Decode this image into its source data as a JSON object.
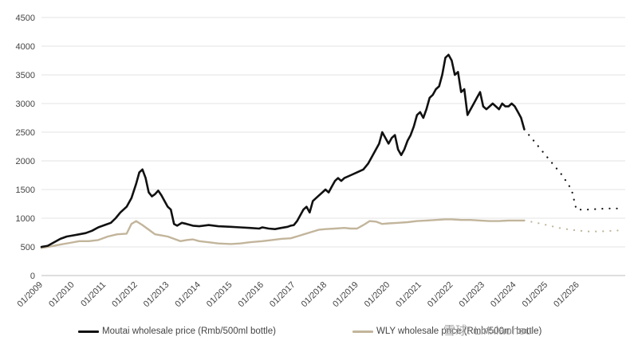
{
  "chart_data": {
    "type": "line",
    "title": "",
    "xlabel": "",
    "ylabel": "",
    "ylim": [
      0,
      4500
    ],
    "yticks": [
      0,
      500,
      1000,
      1500,
      2000,
      2500,
      3000,
      3500,
      4000,
      4500
    ],
    "xlim": [
      2009.0,
      2027.5
    ],
    "xtick_labels": [
      "01/2009",
      "01/2010",
      "01/2011",
      "01/2012",
      "01/2013",
      "01/2014",
      "01/2015",
      "01/2016",
      "01/2017",
      "01/2018",
      "01/2019",
      "01/2020",
      "01/2021",
      "01/2022",
      "01/2023",
      "01/2024",
      "01/2025",
      "01/2026"
    ],
    "xtick_values": [
      2009,
      2010,
      2011,
      2012,
      2013,
      2014,
      2015,
      2016,
      2017,
      2018,
      2019,
      2020,
      2021,
      2022,
      2023,
      2024,
      2025,
      2026
    ],
    "grid": "horizontal",
    "legend_position": "bottom",
    "series": [
      {
        "name": "Moutai wholesale price (Rmb/500ml bottle)",
        "color": "#111111",
        "style": "solid",
        "x": [
          2009.0,
          2009.2,
          2009.4,
          2009.6,
          2009.8,
          2010.0,
          2010.2,
          2010.4,
          2010.6,
          2010.8,
          2011.0,
          2011.2,
          2011.35,
          2011.5,
          2011.7,
          2011.85,
          2012.0,
          2012.1,
          2012.2,
          2012.3,
          2012.4,
          2012.5,
          2012.6,
          2012.7,
          2012.8,
          2012.9,
          2013.0,
          2013.1,
          2013.2,
          2013.3,
          2013.45,
          2013.6,
          2013.8,
          2014.0,
          2014.3,
          2014.6,
          2015.0,
          2015.3,
          2015.6,
          2015.9,
          2016.0,
          2016.2,
          2016.4,
          2016.6,
          2016.8,
          2016.9,
          2017.0,
          2017.1,
          2017.2,
          2017.3,
          2017.4,
          2017.5,
          2017.6,
          2017.7,
          2017.8,
          2017.9,
          2018.0,
          2018.1,
          2018.2,
          2018.3,
          2018.4,
          2018.5,
          2018.6,
          2018.8,
          2019.0,
          2019.2,
          2019.35,
          2019.5,
          2019.6,
          2019.7,
          2019.8,
          2019.9,
          2020.0,
          2020.1,
          2020.2,
          2020.3,
          2020.4,
          2020.5,
          2020.6,
          2020.7,
          2020.8,
          2020.9,
          2021.0,
          2021.1,
          2021.2,
          2021.3,
          2021.4,
          2021.5,
          2021.6,
          2021.7,
          2021.8,
          2021.9,
          2022.0,
          2022.1,
          2022.2,
          2022.3,
          2022.4,
          2022.5,
          2022.6,
          2022.7,
          2022.8,
          2022.9,
          2023.0,
          2023.1,
          2023.2,
          2023.3,
          2023.4,
          2023.5,
          2023.6,
          2023.7,
          2023.8,
          2023.9,
          2024.0,
          2024.1,
          2024.2,
          2024.3
        ],
        "values": [
          500,
          520,
          580,
          640,
          680,
          700,
          720,
          740,
          780,
          840,
          880,
          920,
          1000,
          1100,
          1200,
          1350,
          1600,
          1800,
          1850,
          1700,
          1450,
          1380,
          1420,
          1480,
          1400,
          1300,
          1200,
          1150,
          900,
          870,
          920,
          900,
          870,
          860,
          880,
          860,
          850,
          840,
          830,
          820,
          840,
          820,
          810,
          830,
          850,
          870,
          880,
          950,
          1050,
          1150,
          1200,
          1100,
          1300,
          1350,
          1400,
          1450,
          1500,
          1450,
          1550,
          1650,
          1700,
          1650,
          1700,
          1750,
          1800,
          1850,
          1950,
          2100,
          2200,
          2300,
          2500,
          2400,
          2300,
          2400,
          2450,
          2200,
          2100,
          2200,
          2350,
          2450,
          2600,
          2800,
          2850,
          2750,
          2900,
          3100,
          3150,
          3250,
          3300,
          3500,
          3800,
          3850,
          3750,
          3500,
          3550,
          3200,
          3250,
          2800,
          2900,
          3000,
          3100,
          3200,
          2950,
          2900,
          2950,
          3000,
          2950,
          2900,
          3000,
          2950,
          2950,
          3000,
          2950,
          2850,
          2750,
          2550
        ]
      },
      {
        "name": "Moutai wholesale price forecast",
        "color": "#111111",
        "style": "dotted",
        "legend": false,
        "x": [
          2024.3,
          2024.6,
          2024.9,
          2025.2,
          2025.5,
          2025.8,
          2025.95,
          2026.3,
          2026.6,
          2026.9,
          2027.3
        ],
        "values": [
          2550,
          2350,
          2150,
          1950,
          1750,
          1500,
          1150,
          1150,
          1160,
          1170,
          1170
        ]
      },
      {
        "name": "WLY wholesale price (Rmb/500ml bottle)",
        "color": "#c2b59b",
        "style": "solid",
        "x": [
          2009.0,
          2009.3,
          2009.6,
          2009.9,
          2010.2,
          2010.5,
          2010.8,
          2011.1,
          2011.4,
          2011.7,
          2011.85,
          2012.0,
          2012.2,
          2012.4,
          2012.6,
          2012.8,
          2013.0,
          2013.2,
          2013.4,
          2013.6,
          2013.8,
          2014.0,
          2014.3,
          2014.6,
          2015.0,
          2015.3,
          2015.6,
          2016.0,
          2016.3,
          2016.6,
          2016.9,
          2017.2,
          2017.5,
          2017.8,
          2018.0,
          2018.3,
          2018.6,
          2018.8,
          2019.0,
          2019.2,
          2019.4,
          2019.6,
          2019.8,
          2020.0,
          2020.3,
          2020.6,
          2020.9,
          2021.2,
          2021.5,
          2021.8,
          2022.0,
          2022.3,
          2022.6,
          2022.9,
          2023.2,
          2023.5,
          2023.8,
          2024.1,
          2024.3
        ],
        "values": [
          480,
          510,
          540,
          570,
          600,
          600,
          620,
          680,
          720,
          730,
          900,
          950,
          880,
          800,
          720,
          700,
          680,
          640,
          600,
          620,
          630,
          600,
          580,
          560,
          550,
          560,
          580,
          600,
          620,
          640,
          650,
          700,
          750,
          800,
          810,
          820,
          830,
          820,
          820,
          880,
          950,
          940,
          900,
          910,
          920,
          930,
          950,
          960,
          970,
          980,
          980,
          970,
          970,
          960,
          950,
          950,
          960,
          960,
          960
        ]
      },
      {
        "name": "WLY wholesale price forecast",
        "color": "#c2b59b",
        "style": "dotted",
        "legend": false,
        "x": [
          2024.3,
          2024.7,
          2025.1,
          2025.5,
          2025.9,
          2026.3,
          2026.7,
          2027.1,
          2027.4
        ],
        "values": [
          960,
          920,
          870,
          820,
          790,
          770,
          770,
          780,
          790
        ]
      }
    ]
  },
  "legend": {
    "moutai_label": "Moutai wholesale price (Rmb/500ml bottle)",
    "wly_label": "WLY wholesale price (Rmb/500ml bottle)"
  },
  "watermark": "雪球: Linxiaohoo"
}
